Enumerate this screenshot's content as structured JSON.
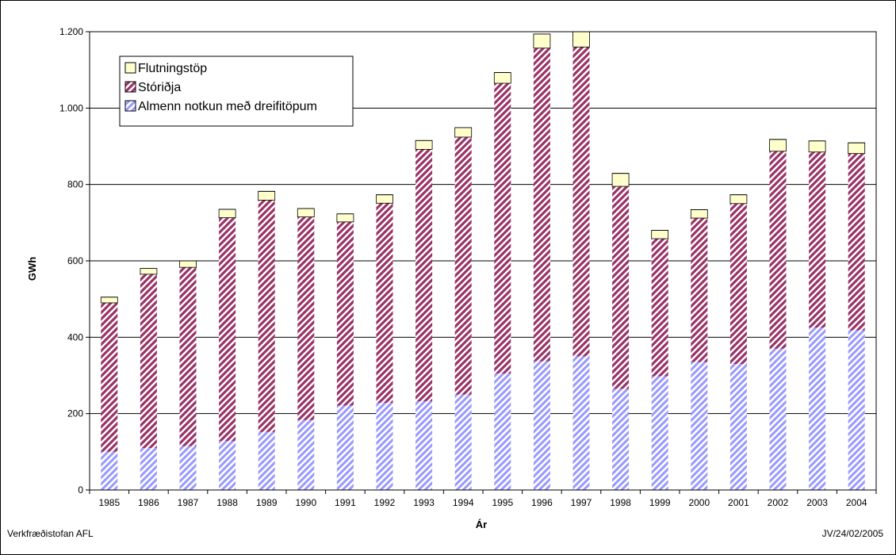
{
  "footer": {
    "left": "Verkfræðistofan AFL",
    "right": "JV/24/02/2005"
  },
  "chart_data": {
    "type": "bar",
    "stacked": true,
    "title": "",
    "xlabel": "Ár",
    "ylabel": "GWh",
    "ylim": [
      0,
      1200
    ],
    "yticks": [
      0,
      200,
      400,
      600,
      800,
      1000,
      1200
    ],
    "ytick_labels": [
      "0",
      "200",
      "400",
      "600",
      "800",
      "1.000",
      "1.200"
    ],
    "grid": "horizontal",
    "legend_position": "top-left",
    "categories": [
      "1985",
      "1986",
      "1987",
      "1988",
      "1989",
      "1990",
      "1991",
      "1992",
      "1993",
      "1994",
      "1995",
      "1996",
      "1997",
      "1998",
      "1999",
      "2000",
      "2001",
      "2002",
      "2003",
      "2004"
    ],
    "series": [
      {
        "name": "Almenn notkun með dreifitöpum",
        "color": "#9999ff",
        "pattern": "diagonal-stripes",
        "values": [
          100,
          110,
          115,
          128,
          152,
          183,
          221,
          228,
          232,
          250,
          305,
          337,
          350,
          265,
          298,
          335,
          330,
          370,
          425,
          418
        ]
      },
      {
        "name": "Stóriðja",
        "color": "#993366",
        "pattern": "diagonal-stripes",
        "values": [
          390,
          455,
          468,
          585,
          607,
          532,
          481,
          523,
          660,
          674,
          760,
          820,
          810,
          530,
          360,
          377,
          420,
          517,
          460,
          463
        ]
      },
      {
        "name": "Flutningstöp",
        "color": "#ffffcc",
        "pattern": "solid",
        "values": [
          15,
          15,
          17,
          22,
          23,
          22,
          21,
          22,
          23,
          25,
          28,
          37,
          40,
          34,
          22,
          22,
          23,
          31,
          29,
          28
        ]
      }
    ]
  }
}
